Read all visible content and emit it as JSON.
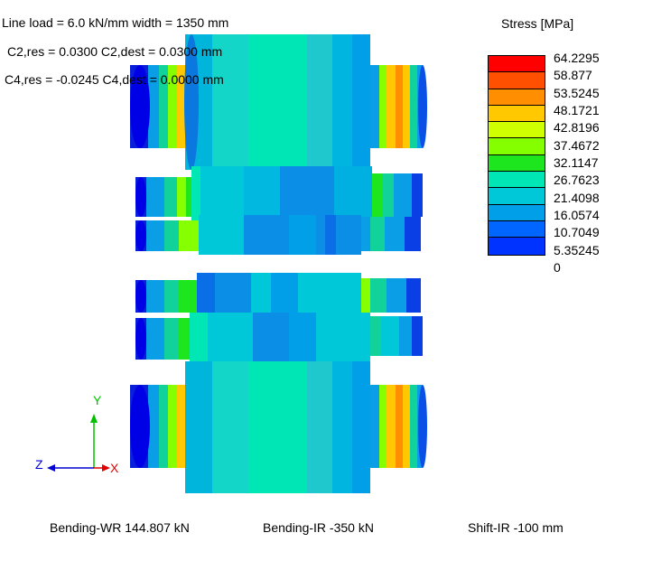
{
  "header": {
    "line_load": "Line load = 6.0 kN/mm  width = 1350 mm",
    "c2": "C2,res = 0.0300  C2,dest = 0.0300 mm",
    "c4": "C4,res = -0.0245  C4,dest = 0.0000 mm"
  },
  "legend": {
    "title": "Stress [MPa]",
    "labels": [
      "64.2295",
      "58.877",
      "53.5245",
      "48.1721",
      "42.8196",
      "37.4672",
      "32.1147",
      "26.7623",
      "21.4098",
      "16.0574",
      "10.7049",
      "5.35245",
      "0"
    ],
    "colors": [
      "#ff0000",
      "#ff4f00",
      "#ff8f00",
      "#ffc800",
      "#cfff00",
      "#84ff00",
      "#1ee61e",
      "#00e6b4",
      "#00c8d8",
      "#009fe8",
      "#0066ff",
      "#0033ff",
      "#0000ff"
    ]
  },
  "axes": {
    "y": "Y",
    "z": "Z",
    "x": "X"
  },
  "footer": {
    "bending_wr": "Bending-WR 144.807 kN",
    "bending_ir": "Bending-IR -350 kN",
    "shift_ir": "Shift-IR -100 mm"
  }
}
